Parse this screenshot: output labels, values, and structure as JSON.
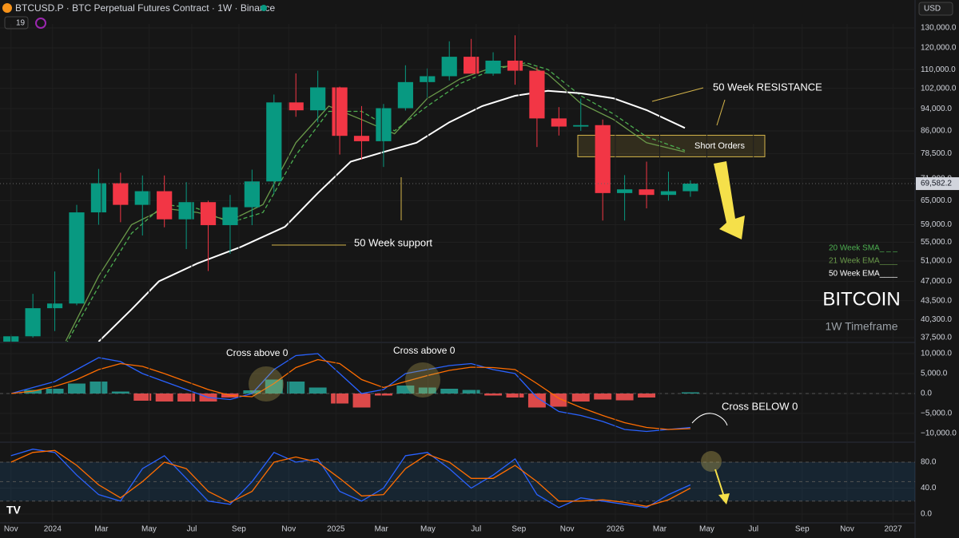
{
  "header": {
    "symbol": "BTCUSD.P · BTC Perpetual Futures Contract · 1W · Binance",
    "interval_count": "19",
    "currency": "USD"
  },
  "chart_data": [
    {
      "type": "candlestick",
      "title": "BITCOIN",
      "subtitle": "1W Timeframe",
      "log_scale": true,
      "grid": true,
      "up_color": "#089981",
      "down_color": "#f23645",
      "xlim": [
        0,
        167
      ],
      "ylim": [
        36900,
        132100
      ],
      "yticks": [
        {
          "value": 130000,
          "label": "130,000.0"
        },
        {
          "value": 120000,
          "label": "120,000.0"
        },
        {
          "value": 110000,
          "label": "110,000.0"
        },
        {
          "value": 102000,
          "label": "102,000.0"
        },
        {
          "value": 94000,
          "label": "94,000.0"
        },
        {
          "value": 86000,
          "label": "86,000.0"
        },
        {
          "value": 78500,
          "label": "78,500.0"
        },
        {
          "value": 71000,
          "label": "71,000.0"
        },
        {
          "value": 65000,
          "label": "65,000.0"
        },
        {
          "value": 59000,
          "label": "59,000.0"
        },
        {
          "value": 55000,
          "label": "55,000.0"
        },
        {
          "value": 51000,
          "label": "51,000.0"
        },
        {
          "value": 47000,
          "label": "47,000.0"
        },
        {
          "value": 43500,
          "label": "43,500.0"
        },
        {
          "value": 40300,
          "label": "40,300.0"
        },
        {
          "value": 37500,
          "label": "37,500.0"
        }
      ],
      "x": [
        2,
        6,
        10,
        14,
        18,
        22,
        26,
        30,
        34,
        38,
        42,
        46,
        50,
        54,
        58,
        62,
        66,
        70,
        74,
        78,
        82,
        86,
        90,
        94,
        98,
        102,
        106,
        110,
        114,
        118,
        122,
        126
      ],
      "open": [
        35000,
        37700,
        42200,
        43000,
        62000,
        69700,
        63900,
        67500,
        60300,
        64600,
        58900,
        63300,
        70200,
        96400,
        93400,
        102400,
        84300,
        82500,
        94200,
        104600,
        107100,
        115800,
        108200,
        114000,
        109500,
        90400,
        87500,
        88000,
        67000,
        68000,
        66500,
        67500
      ],
      "high": [
        38000,
        44700,
        48900,
        63900,
        73800,
        72700,
        71900,
        71900,
        70000,
        65000,
        66500,
        73600,
        99500,
        108300,
        109500,
        102700,
        95000,
        95800,
        111900,
        110500,
        123200,
        124400,
        117900,
        126200,
        111000,
        94600,
        97900,
        90000,
        72000,
        76000,
        73000,
        70500
      ],
      "low": [
        34500,
        37500,
        38500,
        42700,
        59000,
        59600,
        56500,
        58400,
        53500,
        49000,
        52500,
        58900,
        66800,
        91000,
        89000,
        78200,
        76600,
        74400,
        93300,
        98200,
        105300,
        108700,
        107300,
        103500,
        80600,
        84400,
        86000,
        60000,
        60000,
        63000,
        65000,
        66000
      ],
      "close": [
        37700,
        42200,
        43000,
        62000,
        69700,
        63900,
        67500,
        60300,
        64600,
        58900,
        63300,
        70200,
        96400,
        93400,
        102400,
        84300,
        82500,
        94200,
        104600,
        107100,
        115800,
        108200,
        114000,
        109500,
        90400,
        87500,
        88000,
        67000,
        68000,
        66500,
        67500,
        69582.2
      ],
      "last_price_label": "69,582.2",
      "series": [
        {
          "name": "20 Week SMA_ _ _",
          "color": "#4caf50",
          "dashed": true,
          "x": [
            12,
            18,
            24,
            30,
            36,
            42,
            48,
            54,
            60,
            66,
            72,
            78,
            84,
            90,
            96,
            100,
            106,
            112,
            118,
            125
          ],
          "values": [
            36500,
            46000,
            57000,
            64000,
            63000,
            59500,
            62000,
            78000,
            93000,
            93000,
            86000,
            95000,
            104000,
            110000,
            113000,
            110000,
            99000,
            92000,
            84000,
            79500
          ]
        },
        {
          "name": "21 Week EMA____",
          "color": "#6a9a4a",
          "x": [
            12,
            18,
            24,
            30,
            36,
            42,
            48,
            54,
            60,
            66,
            72,
            78,
            84,
            90,
            96,
            100,
            106,
            112,
            118,
            125
          ],
          "values": [
            37000,
            48000,
            59000,
            63000,
            62000,
            60000,
            64000,
            82000,
            95000,
            90000,
            85000,
            98000,
            106000,
            111000,
            112000,
            108000,
            96000,
            90000,
            82000,
            79000
          ]
        },
        {
          "name": "50 Week EMA____",
          "color": "#ffffff",
          "x": [
            18,
            24,
            29,
            36,
            44,
            52,
            58,
            64,
            70,
            76,
            82,
            88,
            94,
            100,
            106,
            112,
            118,
            125
          ],
          "values": [
            36900,
            42000,
            47000,
            50500,
            54000,
            58500,
            67000,
            76000,
            79000,
            82000,
            89000,
            95000,
            99000,
            101000,
            100000,
            98000,
            93500,
            87000
          ]
        }
      ],
      "short_zone": {
        "label": "Short Orders",
        "low": 77500,
        "high": 84500
      },
      "annotations": [
        "50 Week RESISTANCE",
        "50 Week support"
      ]
    },
    {
      "type": "macd",
      "grid": true,
      "up_color": "#26a69a",
      "down_color": "#ff5252",
      "xlim": [
        0,
        167
      ],
      "ylim": [
        -12000,
        12600
      ],
      "yticks": [
        {
          "value": 10000,
          "label": "10,000.0"
        },
        {
          "value": 5000,
          "label": "5,000.0"
        },
        {
          "value": 0,
          "label": "0.0"
        },
        {
          "value": -5000,
          "label": "−5,000.0"
        },
        {
          "value": -10000,
          "label": "−10,000.0"
        }
      ],
      "levels": [
        0
      ],
      "x": [
        2,
        6,
        10,
        14,
        18,
        22,
        26,
        30,
        34,
        38,
        42,
        46,
        50,
        54,
        58,
        62,
        66,
        70,
        74,
        78,
        82,
        86,
        90,
        94,
        98,
        102,
        106,
        110,
        114,
        118,
        122,
        126
      ],
      "histogram": [
        0,
        900,
        1200,
        2500,
        3000,
        500,
        -1800,
        -2000,
        -2000,
        -2000,
        -1000,
        800,
        3500,
        3000,
        1500,
        -2500,
        -3500,
        -500,
        2000,
        1500,
        1200,
        900,
        -500,
        -1000,
        -3500,
        -3300,
        -2000,
        -1500,
        -1700,
        -1000,
        0,
        300
      ],
      "series": [
        {
          "name": "MACD",
          "color": "#2962ff",
          "x": [
            2,
            6,
            10,
            14,
            18,
            22,
            26,
            30,
            34,
            38,
            42,
            46,
            50,
            54,
            58,
            62,
            66,
            70,
            74,
            78,
            82,
            86,
            90,
            94,
            98,
            102,
            106,
            110,
            114,
            118,
            122,
            126
          ],
          "values": [
            0,
            1500,
            3000,
            6000,
            9000,
            8000,
            5000,
            3000,
            1000,
            -1000,
            -1500,
            0,
            6000,
            9500,
            10000,
            5000,
            0,
            1000,
            5000,
            6000,
            7000,
            7500,
            6000,
            5000,
            -1000,
            -4500,
            -5500,
            -7000,
            -9000,
            -9500,
            -9000,
            -8500
          ]
        },
        {
          "name": "Signal",
          "color": "#ff6d00",
          "x": [
            2,
            6,
            10,
            14,
            18,
            22,
            26,
            30,
            34,
            38,
            42,
            46,
            50,
            54,
            58,
            62,
            66,
            70,
            74,
            78,
            82,
            86,
            90,
            94,
            98,
            102,
            106,
            110,
            114,
            118,
            122,
            126
          ],
          "values": [
            0,
            600,
            1800,
            3500,
            6000,
            7500,
            6800,
            5000,
            3000,
            1000,
            -500,
            -800,
            2500,
            6500,
            8500,
            7500,
            3500,
            1500,
            3000,
            4500,
            5800,
            6600,
            6500,
            6000,
            2500,
            -1200,
            -3500,
            -5500,
            -7300,
            -8500,
            -9000,
            -8800
          ]
        }
      ],
      "annotations": [
        "Cross above 0",
        "Cross above 0",
        "Cross BELOW 0"
      ]
    },
    {
      "type": "line",
      "grid": true,
      "band_color": "rgba(33,150,243,0.12)",
      "xlim": [
        0,
        167
      ],
      "ylim": [
        -13.5,
        109.5
      ],
      "yticks": [
        {
          "value": 80,
          "label": "80.0"
        },
        {
          "value": 40,
          "label": "40.0"
        },
        {
          "value": 0,
          "label": "0.0"
        }
      ],
      "levels": [
        20,
        50,
        80
      ],
      "xticks": [
        {
          "value": 2,
          "label": "Nov"
        },
        {
          "value": 9.6,
          "label": "2024"
        },
        {
          "value": 18.5,
          "label": "Mar"
        },
        {
          "value": 27.2,
          "label": "May"
        },
        {
          "value": 35,
          "label": "Jul"
        },
        {
          "value": 43.6,
          "label": "Sep"
        },
        {
          "value": 52.7,
          "label": "Nov"
        },
        {
          "value": 61.3,
          "label": "2025"
        },
        {
          "value": 69.6,
          "label": "Mar"
        },
        {
          "value": 78.1,
          "label": "May"
        },
        {
          "value": 86.9,
          "label": "Jul"
        },
        {
          "value": 94.7,
          "label": "Sep"
        },
        {
          "value": 103.5,
          "label": "Nov"
        },
        {
          "value": 112.3,
          "label": "2026"
        },
        {
          "value": 120.4,
          "label": "Mar"
        },
        {
          "value": 129,
          "label": "May"
        },
        {
          "value": 137.5,
          "label": "Jul"
        },
        {
          "value": 146.4,
          "label": "Sep"
        },
        {
          "value": 154.6,
          "label": "Nov"
        },
        {
          "value": 163,
          "label": "2027"
        }
      ],
      "series": [
        {
          "name": "%K",
          "color": "#2962ff",
          "x": [
            2,
            6,
            10,
            14,
            18,
            22,
            26,
            30,
            34,
            38,
            42,
            46,
            50,
            54,
            58,
            62,
            66,
            70,
            74,
            78,
            82,
            86,
            90,
            94,
            98,
            102,
            106,
            110,
            114,
            118,
            122,
            126
          ],
          "values": [
            90,
            100,
            95,
            60,
            30,
            20,
            70,
            90,
            55,
            20,
            15,
            50,
            95,
            80,
            85,
            35,
            20,
            40,
            90,
            95,
            70,
            40,
            60,
            85,
            30,
            10,
            25,
            20,
            15,
            10,
            30,
            45
          ]
        },
        {
          "name": "%D",
          "color": "#ff6d00",
          "x": [
            2,
            6,
            10,
            14,
            18,
            22,
            26,
            30,
            34,
            38,
            42,
            46,
            50,
            54,
            58,
            62,
            66,
            70,
            74,
            78,
            82,
            86,
            90,
            94,
            98,
            102,
            106,
            110,
            114,
            118,
            122,
            126
          ],
          "values": [
            80,
            95,
            98,
            75,
            45,
            25,
            50,
            80,
            70,
            35,
            18,
            35,
            80,
            88,
            80,
            55,
            28,
            30,
            70,
            92,
            80,
            55,
            55,
            75,
            50,
            20,
            20,
            22,
            18,
            12,
            22,
            40
          ]
        }
      ]
    }
  ]
}
